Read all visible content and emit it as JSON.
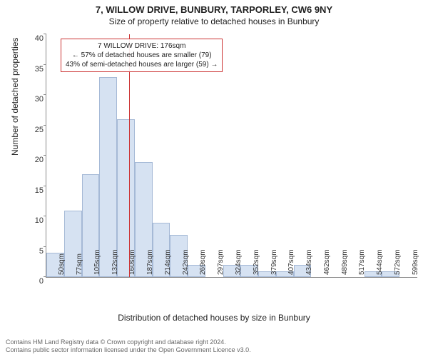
{
  "title": "7, WILLOW DRIVE, BUNBURY, TARPORLEY, CW6 9NY",
  "subtitle": "Size of property relative to detached houses in Bunbury",
  "ylabel": "Number of detached properties",
  "xlabel": "Distribution of detached houses by size in Bunbury",
  "chart": {
    "type": "histogram",
    "ylim": [
      0,
      40
    ],
    "ytick_step": 5,
    "yticks": [
      0,
      5,
      10,
      15,
      20,
      25,
      30,
      35,
      40
    ],
    "bar_color": "#d6e2f2",
    "bar_border": "#a5b9d6",
    "background_color": "#ffffff",
    "axis_color": "#888888",
    "marker": {
      "position_index": 4.7,
      "color": "#cc3232"
    },
    "annotation": {
      "lines": [
        "7 WILLOW DRIVE: 176sqm",
        "← 57% of detached houses are smaller (79)",
        "43% of semi-detached houses are larger (59) →"
      ],
      "border_color": "#cc3232"
    },
    "categories": [
      "50sqm",
      "77sqm",
      "105sqm",
      "132sqm",
      "160sqm",
      "187sqm",
      "214sqm",
      "242sqm",
      "269sqm",
      "297sqm",
      "324sqm",
      "352sqm",
      "379sqm",
      "407sqm",
      "434sqm",
      "462sqm",
      "489sqm",
      "517sqm",
      "544sqm",
      "572sqm",
      "599sqm"
    ],
    "values": [
      4,
      11,
      17,
      33,
      26,
      19,
      9,
      7,
      2,
      0,
      2,
      2,
      1,
      1,
      2,
      0,
      0,
      0,
      1,
      1,
      0
    ]
  },
  "footnote": {
    "line1": "Contains HM Land Registry data © Crown copyright and database right 2024.",
    "line2": "Contains public sector information licensed under the Open Government Licence v3.0."
  }
}
